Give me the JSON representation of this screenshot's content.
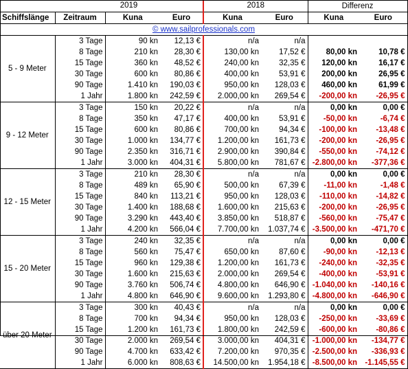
{
  "header": {
    "year_a": "2019",
    "year_b": "2018",
    "diff": "Differenz",
    "col_length": "Schiffslänge",
    "col_period": "Zeitraum",
    "col_kuna": "Kuna",
    "col_euro": "Euro"
  },
  "link": "© www.sailprofessionals.com",
  "groups": [
    {
      "label": "5 - 9 Meter",
      "rows": [
        {
          "period": "3 Tage",
          "k19": "90 kn",
          "e19": "12,13 €",
          "k18": "n/a",
          "e18": "n/a",
          "dk": "",
          "de": "",
          "dkneg": false,
          "deneg": false
        },
        {
          "period": "8 Tage",
          "k19": "210 kn",
          "e19": "28,30 €",
          "k18": "130,00 kn",
          "e18": "17,52 €",
          "dk": "80,00 kn",
          "de": "10,78 €",
          "dkneg": false,
          "deneg": false
        },
        {
          "period": "15 Tage",
          "k19": "360 kn",
          "e19": "48,52 €",
          "k18": "240,00 kn",
          "e18": "32,35 €",
          "dk": "120,00 kn",
          "de": "16,17 €",
          "dkneg": false,
          "deneg": false
        },
        {
          "period": "30 Tage",
          "k19": "600 kn",
          "e19": "80,86 €",
          "k18": "400,00 kn",
          "e18": "53,91 €",
          "dk": "200,00 kn",
          "de": "26,95 €",
          "dkneg": false,
          "deneg": false
        },
        {
          "period": "90 Tage",
          "k19": "1.410 kn",
          "e19": "190,03 €",
          "k18": "950,00 kn",
          "e18": "128,03 €",
          "dk": "460,00 kn",
          "de": "61,99 €",
          "dkneg": false,
          "deneg": false
        },
        {
          "period": "1 Jahr",
          "k19": "1.800 kn",
          "e19": "242,59 €",
          "k18": "2.000,00 kn",
          "e18": "269,54 €",
          "dk": "-200,00 kn",
          "de": "-26,95 €",
          "dkneg": true,
          "deneg": true
        }
      ]
    },
    {
      "label": "9 - 12 Meter",
      "rows": [
        {
          "period": "3 Tage",
          "k19": "150 kn",
          "e19": "20,22 €",
          "k18": "n/a",
          "e18": "n/a",
          "dk": "0,00 kn",
          "de": "0,00 €",
          "dkneg": false,
          "deneg": false
        },
        {
          "period": "8 Tage",
          "k19": "350 kn",
          "e19": "47,17 €",
          "k18": "400,00 kn",
          "e18": "53,91 €",
          "dk": "-50,00 kn",
          "de": "-6,74 €",
          "dkneg": true,
          "deneg": true
        },
        {
          "period": "15 Tage",
          "k19": "600 kn",
          "e19": "80,86 €",
          "k18": "700,00 kn",
          "e18": "94,34 €",
          "dk": "-100,00 kn",
          "de": "-13,48 €",
          "dkneg": true,
          "deneg": true
        },
        {
          "period": "30 Tage",
          "k19": "1.000 kn",
          "e19": "134,77 €",
          "k18": "1.200,00 kn",
          "e18": "161,73 €",
          "dk": "-200,00 kn",
          "de": "-26,95 €",
          "dkneg": true,
          "deneg": true
        },
        {
          "period": "90 Tage",
          "k19": "2.350 kn",
          "e19": "316,71 €",
          "k18": "2.900,00 kn",
          "e18": "390,84 €",
          "dk": "-550,00 kn",
          "de": "-74,12 €",
          "dkneg": true,
          "deneg": true
        },
        {
          "period": "1 Jahr",
          "k19": "3.000 kn",
          "e19": "404,31 €",
          "k18": "5.800,00 kn",
          "e18": "781,67 €",
          "dk": "-2.800,00 kn",
          "de": "-377,36 €",
          "dkneg": true,
          "deneg": true
        }
      ]
    },
    {
      "label": "12 - 15 Meter",
      "rows": [
        {
          "period": "3 Tage",
          "k19": "210 kn",
          "e19": "28,30 €",
          "k18": "n/a",
          "e18": "n/a",
          "dk": "0,00 kn",
          "de": "0,00 €",
          "dkneg": false,
          "deneg": false
        },
        {
          "period": "8 Tage",
          "k19": "489 kn",
          "e19": "65,90 €",
          "k18": "500,00 kn",
          "e18": "67,39 €",
          "dk": "-11,00 kn",
          "de": "-1,48 €",
          "dkneg": true,
          "deneg": true
        },
        {
          "period": "15 Tage",
          "k19": "840 kn",
          "e19": "113,21 €",
          "k18": "950,00 kn",
          "e18": "128,03 €",
          "dk": "-110,00 kn",
          "de": "-14,82 €",
          "dkneg": true,
          "deneg": true
        },
        {
          "period": "30 Tage",
          "k19": "1.400 kn",
          "e19": "188,68 €",
          "k18": "1.600,00 kn",
          "e18": "215,63 €",
          "dk": "-200,00 kn",
          "de": "-26,95 €",
          "dkneg": true,
          "deneg": true
        },
        {
          "period": "90 Tage",
          "k19": "3.290 kn",
          "e19": "443,40 €",
          "k18": "3.850,00 kn",
          "e18": "518,87 €",
          "dk": "-560,00 kn",
          "de": "-75,47 €",
          "dkneg": true,
          "deneg": true
        },
        {
          "period": "1 Jahr",
          "k19": "4.200 kn",
          "e19": "566,04 €",
          "k18": "7.700,00 kn",
          "e18": "1.037,74 €",
          "dk": "-3.500,00 kn",
          "de": "-471,70 €",
          "dkneg": true,
          "deneg": true
        }
      ]
    },
    {
      "label": "15 - 20 Meter",
      "rows": [
        {
          "period": "3 Tage",
          "k19": "240 kn",
          "e19": "32,35 €",
          "k18": "n/a",
          "e18": "n/a",
          "dk": "0,00 kn",
          "de": "0,00 €",
          "dkneg": false,
          "deneg": false
        },
        {
          "period": "8 Tage",
          "k19": "560 kn",
          "e19": "75,47 €",
          "k18": "650,00 kn",
          "e18": "87,60 €",
          "dk": "-90,00 kn",
          "de": "-12,13 €",
          "dkneg": true,
          "deneg": true
        },
        {
          "period": "15 Tage",
          "k19": "960 kn",
          "e19": "129,38 €",
          "k18": "1.200,00 kn",
          "e18": "161,73 €",
          "dk": "-240,00 kn",
          "de": "-32,35 €",
          "dkneg": true,
          "deneg": true
        },
        {
          "period": "30 Tage",
          "k19": "1.600 kn",
          "e19": "215,63 €",
          "k18": "2.000,00 kn",
          "e18": "269,54 €",
          "dk": "-400,00 kn",
          "de": "-53,91 €",
          "dkneg": true,
          "deneg": true
        },
        {
          "period": "90 Tage",
          "k19": "3.760 kn",
          "e19": "506,74 €",
          "k18": "4.800,00 kn",
          "e18": "646,90 €",
          "dk": "-1.040,00 kn",
          "de": "-140,16 €",
          "dkneg": true,
          "deneg": true
        },
        {
          "period": "1 Jahr",
          "k19": "4.800 kn",
          "e19": "646,90 €",
          "k18": "9.600,00 kn",
          "e18": "1.293,80 €",
          "dk": "-4.800,00 kn",
          "de": "-646,90 €",
          "dkneg": true,
          "deneg": true
        }
      ]
    },
    {
      "label": "über 20 Meter",
      "rows": [
        {
          "period": "3 Tage",
          "k19": "300 kn",
          "e19": "40,43 €",
          "k18": "n/a",
          "e18": "n/a",
          "dk": "0,00 kn",
          "de": "0,00 €",
          "dkneg": false,
          "deneg": false
        },
        {
          "period": "8 Tage",
          "k19": "700 kn",
          "e19": "94,34 €",
          "k18": "950,00 kn",
          "e18": "128,03 €",
          "dk": "-250,00 kn",
          "de": "-33,69 €",
          "dkneg": true,
          "deneg": true
        },
        {
          "period": "15 Tage",
          "k19": "1.200 kn",
          "e19": "161,73 €",
          "k18": "1.800,00 kn",
          "e18": "242,59 €",
          "dk": "-600,00 kn",
          "de": "-80,86 €",
          "dkneg": true,
          "deneg": true
        },
        {
          "period": "30 Tage",
          "k19": "2.000 kn",
          "e19": "269,54 €",
          "k18": "3.000,00 kn",
          "e18": "404,31 €",
          "dk": "-1.000,00 kn",
          "de": "-134,77 €",
          "dkneg": true,
          "deneg": true
        },
        {
          "period": "90 Tage",
          "k19": "4.700 kn",
          "e19": "633,42 €",
          "k18": "7.200,00 kn",
          "e18": "970,35 €",
          "dk": "-2.500,00 kn",
          "de": "-336,93 €",
          "dkneg": true,
          "deneg": true
        },
        {
          "period": "1 Jahr",
          "k19": "6.000 kn",
          "e19": "808,63 €",
          "k18": "14.500,00 kn",
          "e18": "1.954,18 €",
          "dk": "-8.500,00 kn",
          "de": "-1.145,55 €",
          "dkneg": true,
          "deneg": true
        }
      ]
    }
  ],
  "colors": {
    "negative": "#c00000",
    "link": "#1a33c9",
    "year_divider": "#e0201b"
  }
}
